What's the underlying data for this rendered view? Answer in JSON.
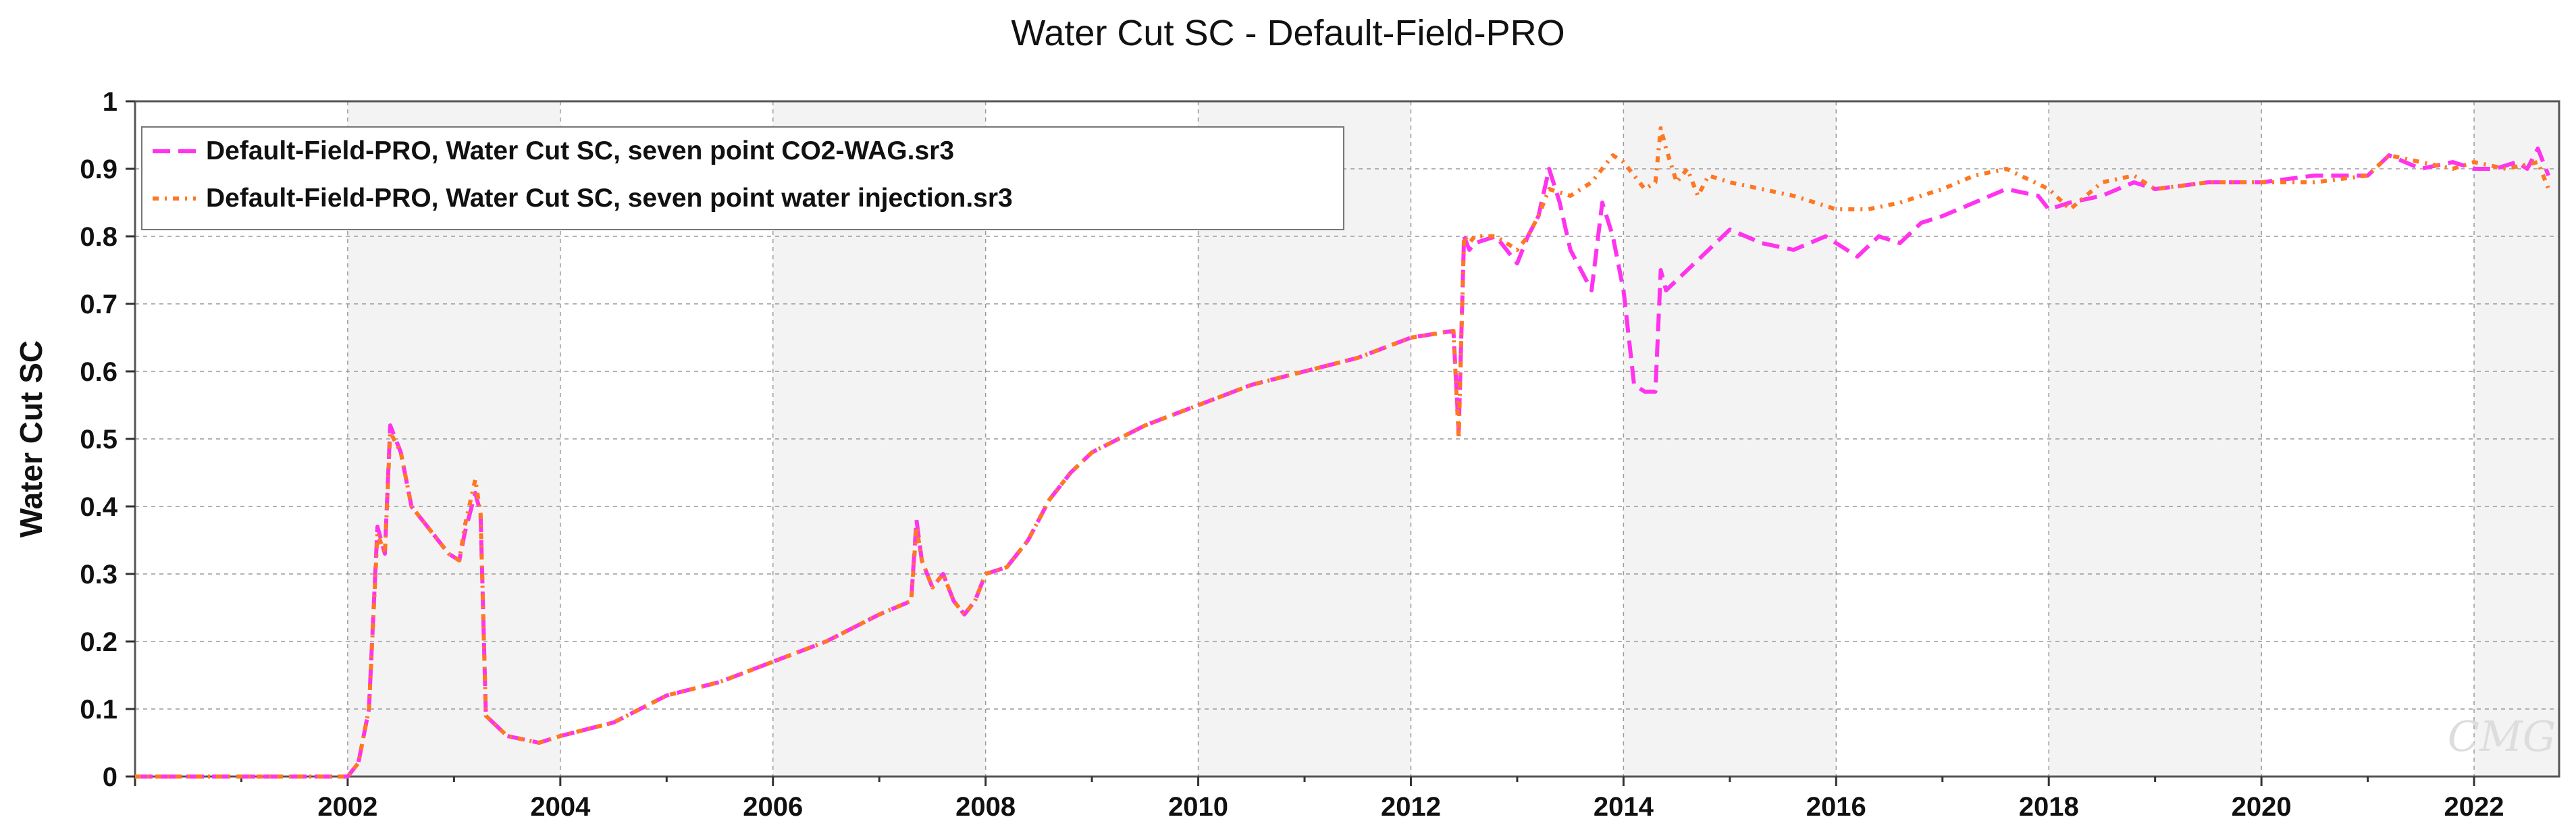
{
  "chart_data": {
    "type": "line",
    "title": "Water Cut SC - Default-Field-PRO",
    "ylabel": "Water Cut SC",
    "xlabel": "",
    "xlim": [
      2000.0,
      2022.8
    ],
    "ylim": [
      0,
      1
    ],
    "x_ticks": [
      "2002",
      "2004",
      "2006",
      "2008",
      "2010",
      "2012",
      "2014",
      "2016",
      "2018",
      "2020",
      "2022"
    ],
    "y_ticks": [
      "0",
      "0.1",
      "0.2",
      "0.3",
      "0.4",
      "0.5",
      "0.6",
      "0.7",
      "0.8",
      "0.9",
      "1"
    ],
    "grid": true,
    "legend_position": "top-left",
    "watermark": "CMG",
    "series": [
      {
        "name": "Default-Field-PRO, Water Cut SC, seven point CO2-WAG.sr3",
        "color": "#ff33ee",
        "dash": "dashed",
        "x": [
          2000.0,
          2002.0,
          2002.1,
          2002.2,
          2002.28,
          2002.35,
          2002.4,
          2002.5,
          2002.6,
          2002.8,
          2002.95,
          2003.05,
          2003.1,
          2003.2,
          2003.25,
          2003.3,
          2003.5,
          2003.8,
          2004.0,
          2004.5,
          2005.0,
          2005.5,
          2006.0,
          2006.5,
          2007.0,
          2007.3,
          2007.35,
          2007.4,
          2007.5,
          2007.6,
          2007.7,
          2007.8,
          2007.9,
          2008.0,
          2008.2,
          2008.4,
          2008.6,
          2008.7,
          2008.8,
          2009.0,
          2009.5,
          2010.0,
          2010.5,
          2011.0,
          2011.5,
          2012.0,
          2012.4,
          2012.45,
          2012.5,
          2012.55,
          2012.6,
          2012.8,
          2013.0,
          2013.1,
          2013.2,
          2013.3,
          2013.4,
          2013.5,
          2013.6,
          2013.7,
          2013.8,
          2013.9,
          2014.0,
          2014.1,
          2014.2,
          2014.3,
          2014.35,
          2014.4,
          2014.6,
          2014.8,
          2015.0,
          2015.3,
          2015.6,
          2015.9,
          2016.0,
          2016.2,
          2016.4,
          2016.6,
          2016.8,
          2017.0,
          2017.3,
          2017.6,
          2017.9,
          2018.0,
          2018.2,
          2018.5,
          2018.8,
          2019.0,
          2019.5,
          2020.0,
          2020.5,
          2021.0,
          2021.2,
          2021.5,
          2021.8,
          2022.0,
          2022.2,
          2022.4,
          2022.5,
          2022.6,
          2022.7
        ],
        "y": [
          0,
          0,
          0.02,
          0.1,
          0.37,
          0.33,
          0.52,
          0.48,
          0.4,
          0.36,
          0.33,
          0.32,
          0.36,
          0.42,
          0.39,
          0.09,
          0.06,
          0.05,
          0.06,
          0.08,
          0.12,
          0.14,
          0.17,
          0.2,
          0.24,
          0.26,
          0.38,
          0.32,
          0.28,
          0.3,
          0.26,
          0.24,
          0.26,
          0.3,
          0.31,
          0.35,
          0.41,
          0.43,
          0.45,
          0.48,
          0.52,
          0.55,
          0.58,
          0.6,
          0.62,
          0.65,
          0.66,
          0.51,
          0.8,
          0.78,
          0.79,
          0.8,
          0.76,
          0.8,
          0.83,
          0.9,
          0.85,
          0.78,
          0.75,
          0.72,
          0.85,
          0.8,
          0.72,
          0.58,
          0.57,
          0.57,
          0.75,
          0.72,
          0.75,
          0.78,
          0.81,
          0.79,
          0.78,
          0.8,
          0.79,
          0.77,
          0.8,
          0.79,
          0.82,
          0.83,
          0.85,
          0.87,
          0.86,
          0.84,
          0.85,
          0.86,
          0.88,
          0.87,
          0.88,
          0.88,
          0.89,
          0.89,
          0.92,
          0.9,
          0.91,
          0.9,
          0.9,
          0.91,
          0.9,
          0.93,
          0.89
        ]
      },
      {
        "name": "Default-Field-PRO, Water Cut SC, seven point water injection.sr3",
        "color": "#ff7722",
        "dash": "dotted",
        "x": [
          2000.0,
          2002.0,
          2002.1,
          2002.2,
          2002.28,
          2002.35,
          2002.4,
          2002.5,
          2002.6,
          2002.8,
          2002.95,
          2003.05,
          2003.1,
          2003.2,
          2003.25,
          2003.3,
          2003.5,
          2003.8,
          2004.0,
          2004.5,
          2005.0,
          2005.5,
          2006.0,
          2006.5,
          2007.0,
          2007.3,
          2007.35,
          2007.4,
          2007.5,
          2007.6,
          2007.7,
          2007.8,
          2007.9,
          2008.0,
          2008.2,
          2008.4,
          2008.6,
          2008.7,
          2008.8,
          2009.0,
          2009.5,
          2010.0,
          2010.5,
          2011.0,
          2011.5,
          2012.0,
          2012.4,
          2012.45,
          2012.5,
          2012.55,
          2012.6,
          2012.8,
          2013.0,
          2013.1,
          2013.2,
          2013.3,
          2013.5,
          2013.7,
          2013.9,
          2014.0,
          2014.2,
          2014.3,
          2014.35,
          2014.4,
          2014.5,
          2014.6,
          2014.7,
          2014.8,
          2015.0,
          2015.3,
          2015.6,
          2016.0,
          2016.3,
          2016.6,
          2016.8,
          2017.0,
          2017.3,
          2017.6,
          2018.0,
          2018.2,
          2018.5,
          2018.8,
          2019.0,
          2019.5,
          2020.0,
          2020.5,
          2021.0,
          2021.2,
          2021.5,
          2021.8,
          2022.0,
          2022.3,
          2022.6,
          2022.7
        ],
        "y": [
          0,
          0,
          0.02,
          0.1,
          0.36,
          0.33,
          0.51,
          0.48,
          0.4,
          0.36,
          0.33,
          0.32,
          0.37,
          0.44,
          0.39,
          0.09,
          0.06,
          0.05,
          0.06,
          0.08,
          0.12,
          0.14,
          0.17,
          0.2,
          0.24,
          0.26,
          0.37,
          0.32,
          0.28,
          0.3,
          0.26,
          0.24,
          0.26,
          0.3,
          0.31,
          0.35,
          0.41,
          0.43,
          0.45,
          0.48,
          0.52,
          0.55,
          0.58,
          0.6,
          0.62,
          0.65,
          0.66,
          0.5,
          0.8,
          0.79,
          0.8,
          0.8,
          0.78,
          0.8,
          0.83,
          0.87,
          0.86,
          0.88,
          0.92,
          0.91,
          0.87,
          0.88,
          0.96,
          0.93,
          0.88,
          0.9,
          0.86,
          0.89,
          0.88,
          0.87,
          0.86,
          0.84,
          0.84,
          0.85,
          0.86,
          0.87,
          0.89,
          0.9,
          0.87,
          0.84,
          0.88,
          0.89,
          0.87,
          0.88,
          0.88,
          0.88,
          0.89,
          0.92,
          0.91,
          0.9,
          0.91,
          0.9,
          0.91,
          0.87
        ]
      }
    ]
  }
}
